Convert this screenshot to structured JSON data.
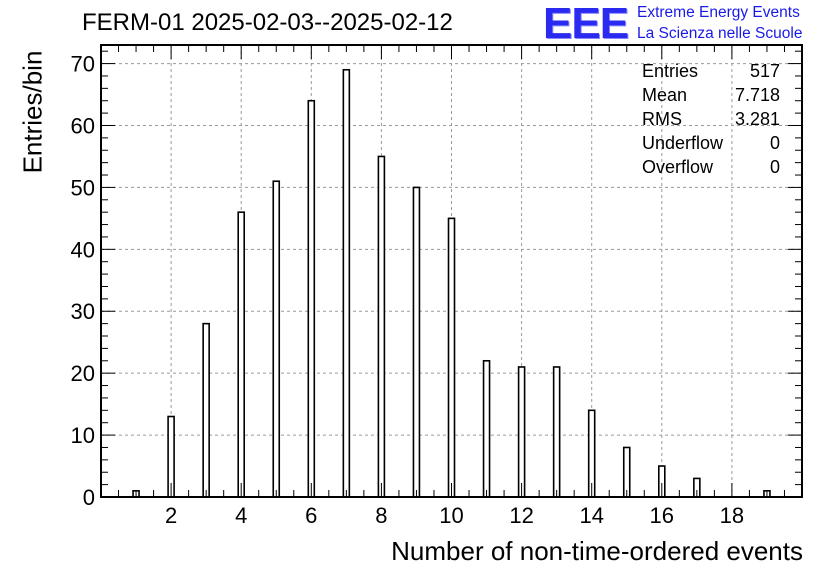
{
  "chart_data": {
    "type": "bar",
    "title": "FERM-01 2025-02-03--2025-02-12",
    "xlabel": "Number of non-time-ordered events",
    "ylabel": "Entries/bin",
    "xlim": [
      0,
      20
    ],
    "ylim": [
      0,
      73
    ],
    "xticks": [
      2,
      4,
      6,
      8,
      10,
      12,
      14,
      16,
      18
    ],
    "yticks": [
      0,
      10,
      20,
      30,
      40,
      50,
      60,
      70
    ],
    "grid": true,
    "bar_x": [
      1,
      2,
      3,
      4,
      5,
      6,
      7,
      8,
      9,
      10,
      11,
      12,
      13,
      14,
      15,
      16,
      17,
      18,
      19
    ],
    "values": [
      1,
      13,
      28,
      46,
      51,
      64,
      69,
      55,
      50,
      45,
      22,
      21,
      21,
      14,
      8,
      5,
      3,
      0,
      1
    ],
    "stats": [
      {
        "label": "Entries",
        "value": "517"
      },
      {
        "label": "Mean",
        "value": "7.718"
      },
      {
        "label": "RMS",
        "value": "3.281"
      },
      {
        "label": "Underflow",
        "value": "0"
      },
      {
        "label": "Overflow",
        "value": "0"
      }
    ],
    "colors": {
      "bar_fill": "#ffffff",
      "bar_stroke": "#000000",
      "grid": "#9a9a9a"
    }
  },
  "logo": {
    "mark": "EEE",
    "line1": "Extreme Energy Events",
    "line2": "La Scienza nelle Scuole",
    "color": "#1a1ae6"
  }
}
